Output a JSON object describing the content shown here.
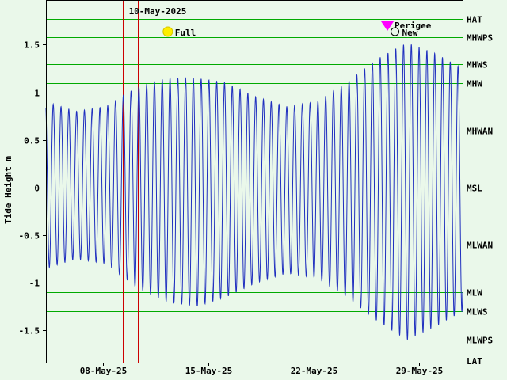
{
  "chart_data": {
    "type": "line",
    "ylabel": "Tide Height m",
    "ylim": [
      -1.84,
      1.97
    ],
    "y_ticks": [
      "1.5",
      "1",
      "0.5",
      "0",
      "-0.5",
      "-1",
      "-1.5"
    ],
    "y_tick_values": [
      1.5,
      1,
      0.5,
      0,
      -0.5,
      -1,
      -1.5
    ],
    "x_tick_labels": [
      "08-May-25",
      "15-May-25",
      "22-May-25",
      "29-May-25"
    ],
    "x_tick_days": [
      8,
      15,
      22,
      29
    ],
    "x_range_days": [
      4.2,
      31.9
    ],
    "selected_date_label": "10-May-2025",
    "marker_days": [
      9.3,
      10.3
    ],
    "levels": [
      {
        "name": "HAT",
        "value": 1.77
      },
      {
        "name": "MHWPS",
        "value": 1.58
      },
      {
        "name": "MHWS",
        "value": 1.3
      },
      {
        "name": "MHW",
        "value": 1.1
      },
      {
        "name": "MHWAN",
        "value": 0.6
      },
      {
        "name": "MSL",
        "value": 0
      },
      {
        "name": "MLWAN",
        "value": -0.6
      },
      {
        "name": "MLW",
        "value": -1.1
      },
      {
        "name": "MLWS",
        "value": -1.3
      },
      {
        "name": "MLWPS",
        "value": -1.6
      },
      {
        "name": "LAT",
        "value": -1.84
      }
    ],
    "events": [
      {
        "label": "Full",
        "day": 12.3,
        "kind": "full-moon"
      },
      {
        "label": "New",
        "day": 27.4,
        "kind": "new-moon"
      },
      {
        "label": "Perigee",
        "day": 26.9,
        "kind": "perigee"
      }
    ],
    "tide_period_hours": 12.42,
    "tide_series": {
      "name": "Tide height",
      "days": [
        4.2,
        6.2,
        8.2,
        10.2,
        12.2,
        14.2,
        16.2,
        18.2,
        20.2,
        22.2,
        24.2,
        26.2,
        28.2,
        30.2,
        31.9
      ],
      "high": [
        0.9,
        0.8,
        0.85,
        1.05,
        1.15,
        1.15,
        1.1,
        0.95,
        0.85,
        0.9,
        1.1,
        1.35,
        1.52,
        1.4,
        1.25
      ],
      "low": [
        -0.85,
        -0.75,
        -0.8,
        -1.05,
        -1.2,
        -1.25,
        -1.15,
        -1.0,
        -0.9,
        -0.95,
        -1.15,
        -1.4,
        -1.6,
        -1.45,
        -1.3
      ]
    },
    "colors": {
      "background": "#eaf8ea",
      "series": "#1f2fbf",
      "level_lines": "#00aa00",
      "markers": "#cc0000",
      "full_moon": "#ffee00",
      "perigee": "#ff00ff"
    }
  }
}
